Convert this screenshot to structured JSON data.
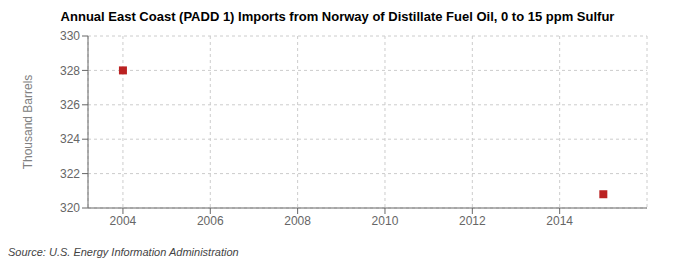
{
  "chart_data": {
    "type": "scatter",
    "title": "Annual East Coast (PADD 1) Imports from Norway of Distillate Fuel Oil, 0 to 15 ppm Sulfur",
    "y_label": "Thousand Barrels",
    "annotations": [
      "Source: U.S. Energy Information Administration"
    ],
    "x": [
      2004,
      2015
    ],
    "values": [
      328.0,
      320.8
    ],
    "color": "#bb2222",
    "marker": "square",
    "xlim": [
      2003.2,
      2016.0
    ],
    "ylim": [
      320,
      330
    ],
    "xticks": [
      2004,
      2006,
      2008,
      2010,
      2012,
      2014
    ],
    "yticks": [
      320,
      322,
      324,
      326,
      328,
      330
    ],
    "grid": true
  }
}
